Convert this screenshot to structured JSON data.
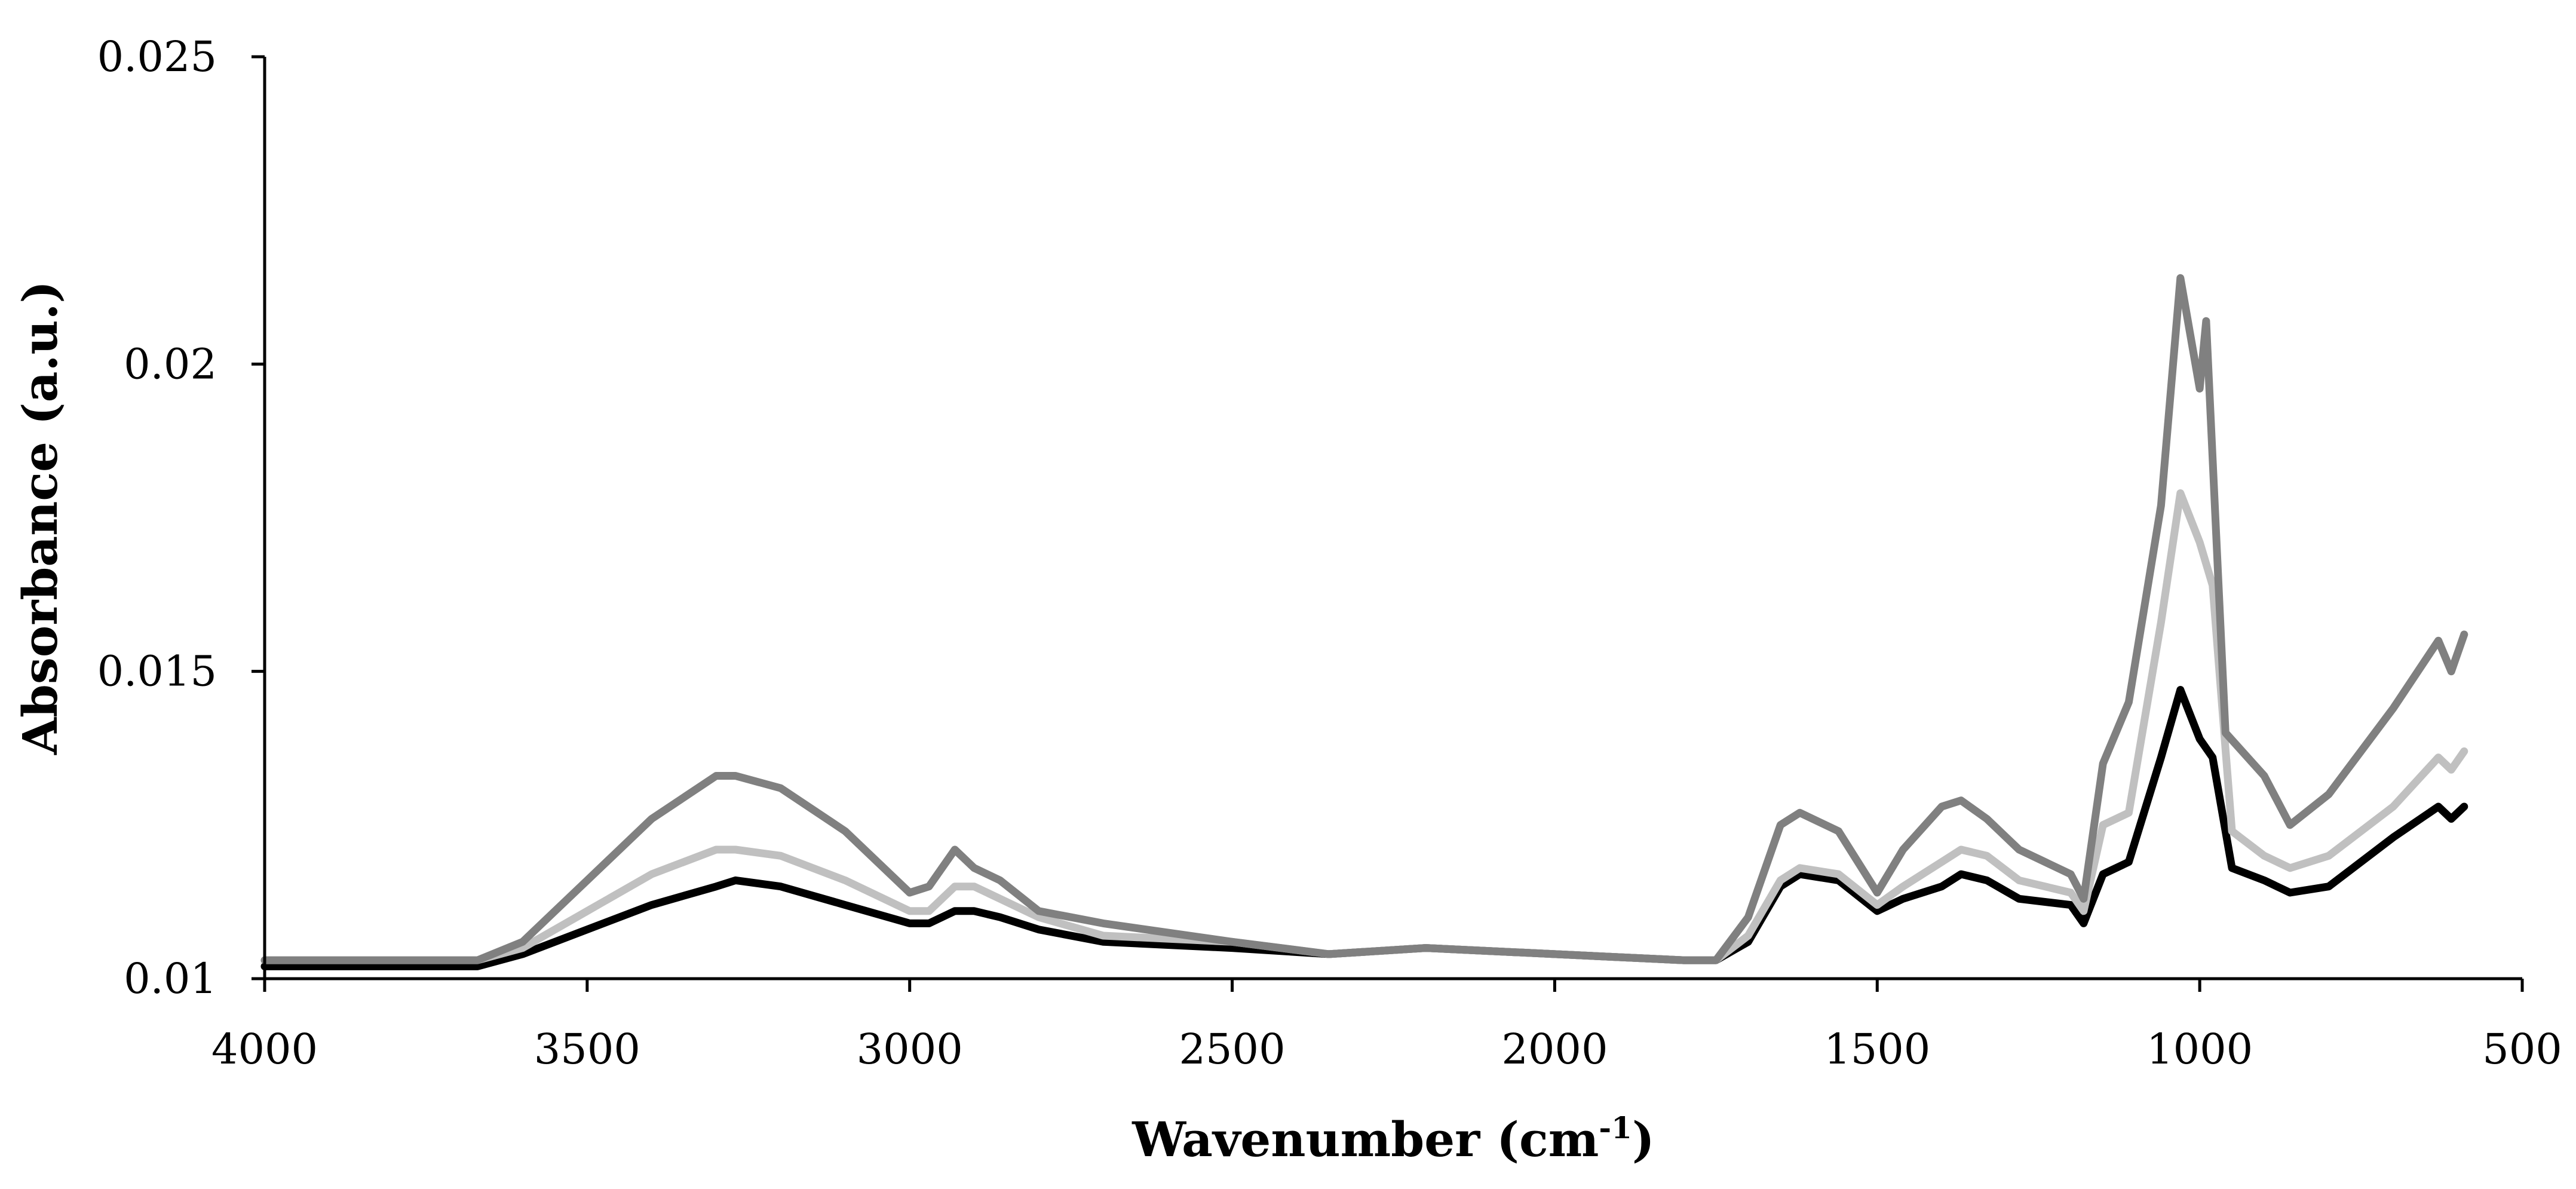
{
  "chart_data": {
    "type": "line",
    "title": "",
    "xlabel": {
      "main": "Wavenumber (cm",
      "sup": "-1",
      "end": ")"
    },
    "ylabel": "Absorbance (a.u.)",
    "xlim": [
      4000,
      500
    ],
    "ylim": [
      0.01,
      0.025
    ],
    "x_reversed": true,
    "grid": false,
    "x_ticks": [
      4000,
      3500,
      3000,
      2500,
      2000,
      1500,
      1000,
      500
    ],
    "x_tick_labels": [
      "4000",
      "3500",
      "3000",
      "2500",
      "2000",
      "1500",
      "1000",
      "500"
    ],
    "y_ticks": [
      0.01,
      0.015,
      0.02,
      0.025
    ],
    "y_tick_labels": [
      "0.01",
      "0.015",
      "0.02",
      "0.025"
    ],
    "series": [
      {
        "color": "#000000",
        "points": [
          [
            4000,
            0.0102
          ],
          [
            3800,
            0.0102
          ],
          [
            3670,
            0.0102
          ],
          [
            3600,
            0.0104
          ],
          [
            3500,
            0.0108
          ],
          [
            3400,
            0.0112
          ],
          [
            3300,
            0.0115
          ],
          [
            3270,
            0.0116
          ],
          [
            3200,
            0.0115
          ],
          [
            3100,
            0.0112
          ],
          [
            3000,
            0.0109
          ],
          [
            2970,
            0.0109
          ],
          [
            2930,
            0.0111
          ],
          [
            2900,
            0.0111
          ],
          [
            2860,
            0.011
          ],
          [
            2800,
            0.0108
          ],
          [
            2700,
            0.0106
          ],
          [
            2500,
            0.0105
          ],
          [
            2350,
            0.0104
          ],
          [
            2200,
            0.0105
          ],
          [
            2000,
            0.0104
          ],
          [
            1800,
            0.0103
          ],
          [
            1750,
            0.0103
          ],
          [
            1700,
            0.0106
          ],
          [
            1650,
            0.0115
          ],
          [
            1620,
            0.0117
          ],
          [
            1560,
            0.0116
          ],
          [
            1500,
            0.0111
          ],
          [
            1460,
            0.0113
          ],
          [
            1400,
            0.0115
          ],
          [
            1370,
            0.0117
          ],
          [
            1330,
            0.0116
          ],
          [
            1280,
            0.0113
          ],
          [
            1200,
            0.0112
          ],
          [
            1180,
            0.0109
          ],
          [
            1150,
            0.0117
          ],
          [
            1110,
            0.0119
          ],
          [
            1060,
            0.0136
          ],
          [
            1030,
            0.0147
          ],
          [
            1000,
            0.0139
          ],
          [
            980,
            0.0136
          ],
          [
            950,
            0.0118
          ],
          [
            900,
            0.0116
          ],
          [
            860,
            0.0114
          ],
          [
            800,
            0.0115
          ],
          [
            700,
            0.0123
          ],
          [
            630,
            0.0128
          ],
          [
            610,
            0.0126
          ],
          [
            590,
            0.0128
          ]
        ]
      },
      {
        "color": "#c0c0c0",
        "points": [
          [
            4000,
            0.0103
          ],
          [
            3800,
            0.0103
          ],
          [
            3670,
            0.0103
          ],
          [
            3600,
            0.0105
          ],
          [
            3500,
            0.0111
          ],
          [
            3400,
            0.0117
          ],
          [
            3300,
            0.0121
          ],
          [
            3270,
            0.0121
          ],
          [
            3200,
            0.012
          ],
          [
            3100,
            0.0116
          ],
          [
            3000,
            0.0111
          ],
          [
            2970,
            0.0111
          ],
          [
            2930,
            0.0115
          ],
          [
            2900,
            0.0115
          ],
          [
            2860,
            0.0113
          ],
          [
            2800,
            0.011
          ],
          [
            2700,
            0.0107
          ],
          [
            2500,
            0.0106
          ],
          [
            2350,
            0.0104
          ],
          [
            2200,
            0.0105
          ],
          [
            2000,
            0.0104
          ],
          [
            1800,
            0.0103
          ],
          [
            1750,
            0.0103
          ],
          [
            1700,
            0.0107
          ],
          [
            1650,
            0.0116
          ],
          [
            1620,
            0.0118
          ],
          [
            1560,
            0.0117
          ],
          [
            1500,
            0.0112
          ],
          [
            1460,
            0.0115
          ],
          [
            1400,
            0.0119
          ],
          [
            1370,
            0.0121
          ],
          [
            1330,
            0.012
          ],
          [
            1280,
            0.0116
          ],
          [
            1200,
            0.0114
          ],
          [
            1180,
            0.0111
          ],
          [
            1150,
            0.0125
          ],
          [
            1110,
            0.0127
          ],
          [
            1060,
            0.0158
          ],
          [
            1030,
            0.0179
          ],
          [
            1000,
            0.0171
          ],
          [
            980,
            0.0164
          ],
          [
            950,
            0.0124
          ],
          [
            900,
            0.012
          ],
          [
            860,
            0.0118
          ],
          [
            800,
            0.012
          ],
          [
            700,
            0.0128
          ],
          [
            630,
            0.0136
          ],
          [
            610,
            0.0134
          ],
          [
            590,
            0.0137
          ]
        ]
      },
      {
        "color": "#808080",
        "points": [
          [
            4000,
            0.0103
          ],
          [
            3800,
            0.0103
          ],
          [
            3670,
            0.0103
          ],
          [
            3600,
            0.0106
          ],
          [
            3500,
            0.0116
          ],
          [
            3400,
            0.0126
          ],
          [
            3300,
            0.0133
          ],
          [
            3270,
            0.0133
          ],
          [
            3200,
            0.0131
          ],
          [
            3100,
            0.0124
          ],
          [
            3000,
            0.0114
          ],
          [
            2970,
            0.0115
          ],
          [
            2930,
            0.0121
          ],
          [
            2900,
            0.0118
          ],
          [
            2860,
            0.0116
          ],
          [
            2800,
            0.0111
          ],
          [
            2700,
            0.0109
          ],
          [
            2500,
            0.0106
          ],
          [
            2350,
            0.0104
          ],
          [
            2200,
            0.0105
          ],
          [
            2000,
            0.0104
          ],
          [
            1800,
            0.0103
          ],
          [
            1750,
            0.0103
          ],
          [
            1700,
            0.011
          ],
          [
            1650,
            0.0125
          ],
          [
            1620,
            0.0127
          ],
          [
            1560,
            0.0124
          ],
          [
            1500,
            0.0114
          ],
          [
            1460,
            0.0121
          ],
          [
            1400,
            0.0128
          ],
          [
            1370,
            0.0129
          ],
          [
            1330,
            0.0126
          ],
          [
            1280,
            0.0121
          ],
          [
            1200,
            0.0117
          ],
          [
            1180,
            0.0113
          ],
          [
            1150,
            0.0135
          ],
          [
            1110,
            0.0145
          ],
          [
            1060,
            0.0177
          ],
          [
            1030,
            0.0214
          ],
          [
            1000,
            0.0196
          ],
          [
            990,
            0.0207
          ],
          [
            960,
            0.014
          ],
          [
            900,
            0.0133
          ],
          [
            860,
            0.0125
          ],
          [
            800,
            0.013
          ],
          [
            700,
            0.0144
          ],
          [
            630,
            0.0155
          ],
          [
            610,
            0.015
          ],
          [
            590,
            0.0156
          ]
        ]
      }
    ]
  }
}
